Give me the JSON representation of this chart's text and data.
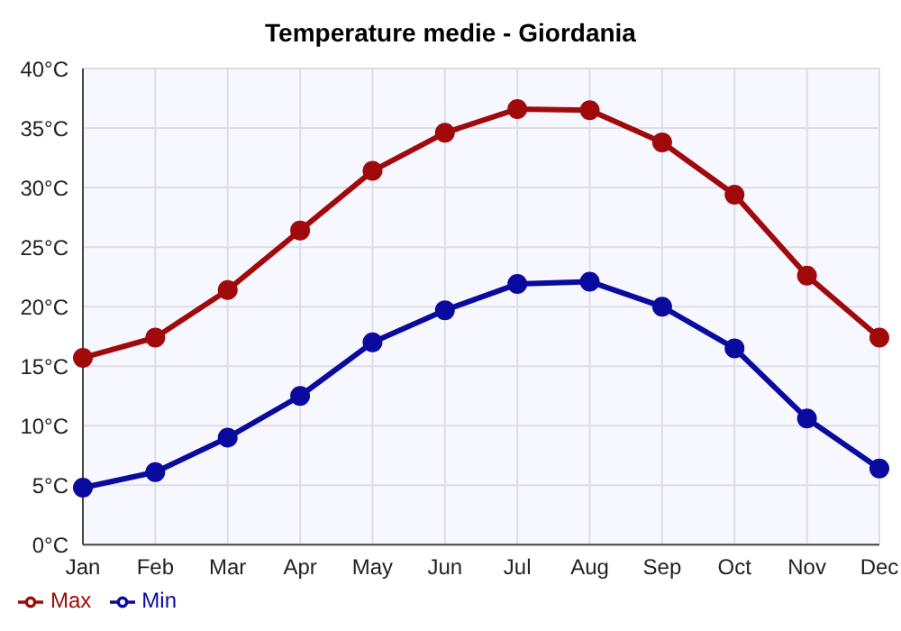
{
  "chart_data": {
    "type": "line",
    "title": "Temperature medie - Giordania",
    "categories": [
      "Jan",
      "Feb",
      "Mar",
      "Apr",
      "May",
      "Jun",
      "Jul",
      "Aug",
      "Sep",
      "Oct",
      "Nov",
      "Dec"
    ],
    "series": [
      {
        "name": "Min",
        "color": "#0a0a9e",
        "values": [
          4.8,
          6.1,
          9.0,
          12.5,
          17.0,
          19.7,
          21.9,
          22.1,
          20.0,
          16.5,
          10.6,
          6.4
        ]
      },
      {
        "name": "Max",
        "color": "#a00a0a",
        "values": [
          15.7,
          17.4,
          21.4,
          26.4,
          31.4,
          34.6,
          36.6,
          36.5,
          33.8,
          29.4,
          22.6,
          17.4
        ]
      }
    ],
    "ylim": [
      0,
      40
    ],
    "yticks": [
      {
        "value": 0,
        "label": "0°C"
      },
      {
        "value": 5,
        "label": "5°C"
      },
      {
        "value": 10,
        "label": "10°C"
      },
      {
        "value": 15,
        "label": "15°C"
      },
      {
        "value": 20,
        "label": "20°C"
      },
      {
        "value": 25,
        "label": "25°C"
      },
      {
        "value": 30,
        "label": "30°C"
      },
      {
        "value": 35,
        "label": "35°C"
      },
      {
        "value": 40,
        "label": "40°C"
      }
    ],
    "grid": true,
    "legend": "bottom left",
    "marker": "circle",
    "line_style": "solid"
  }
}
